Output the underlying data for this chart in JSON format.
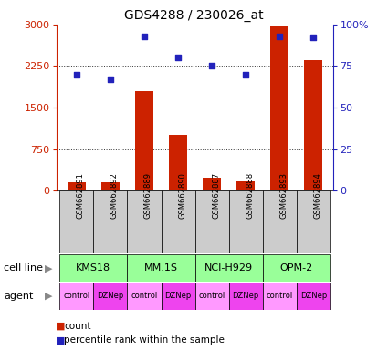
{
  "title": "GDS4288 / 230026_at",
  "samples": [
    "GSM662891",
    "GSM662892",
    "GSM662889",
    "GSM662890",
    "GSM662887",
    "GSM662888",
    "GSM662893",
    "GSM662894"
  ],
  "counts": [
    150,
    160,
    1800,
    1000,
    230,
    170,
    2970,
    2350
  ],
  "percentile_ranks": [
    70,
    67,
    93,
    80,
    75,
    70,
    93,
    92
  ],
  "cell_lines": [
    "KMS18",
    "MM.1S",
    "NCI-H929",
    "OPM-2"
  ],
  "cell_line_spans": [
    [
      0,
      1
    ],
    [
      2,
      3
    ],
    [
      4,
      5
    ],
    [
      6,
      7
    ]
  ],
  "agents": [
    "control",
    "DZNep",
    "control",
    "DZNep",
    "control",
    "DZNep",
    "control",
    "DZNep"
  ],
  "ylim_left": [
    0,
    3000
  ],
  "ylim_right": [
    0,
    100
  ],
  "yticks_left": [
    0,
    750,
    1500,
    2250,
    3000
  ],
  "yticks_right": [
    0,
    25,
    50,
    75,
    100
  ],
  "bar_color": "#cc2200",
  "dot_color": "#2222bb",
  "cell_line_color": "#99ff99",
  "agent_control_color": "#ff99ff",
  "agent_dznep_color": "#ee44ee",
  "sample_box_color": "#cccccc",
  "left_axis_color": "#cc2200",
  "right_axis_color": "#2222bb",
  "legend_count_color": "#cc2200",
  "legend_dot_color": "#2222bb",
  "grid_color": "#333333",
  "title_fontsize": 10,
  "axis_fontsize": 8,
  "sample_fontsize": 6,
  "cell_line_fontsize": 8,
  "agent_fontsize": 6,
  "label_fontsize": 8,
  "legend_fontsize": 7.5
}
